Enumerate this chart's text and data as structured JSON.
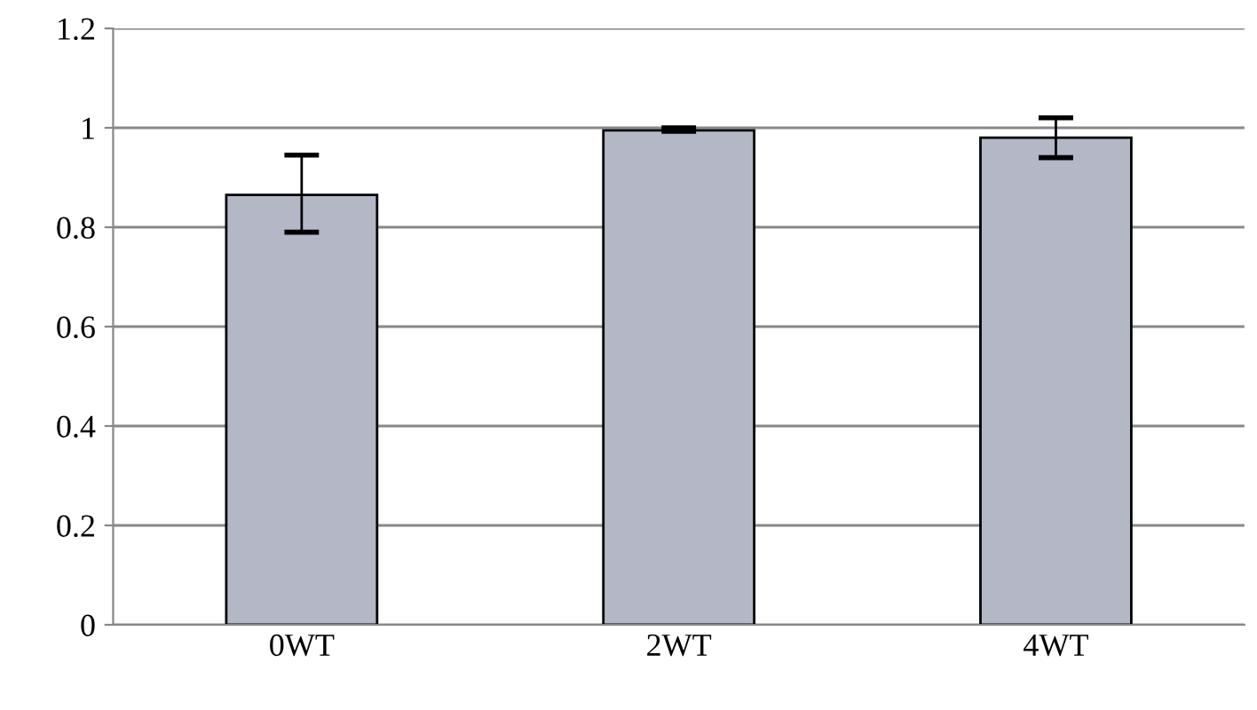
{
  "chart_data": {
    "type": "bar",
    "categories": [
      "0WT",
      "2WT",
      "4WT"
    ],
    "values": [
      0.865,
      0.995,
      0.98
    ],
    "errors": [
      [
        0.79,
        0.945
      ],
      [
        0.993,
        1.0
      ],
      [
        0.94,
        1.02
      ]
    ],
    "color": "#b4b8c6",
    "ylim": [
      0,
      1.2
    ],
    "yticks": [
      0,
      0.2,
      0.4,
      0.6,
      0.8,
      1,
      1.2
    ],
    "grid": "y"
  }
}
